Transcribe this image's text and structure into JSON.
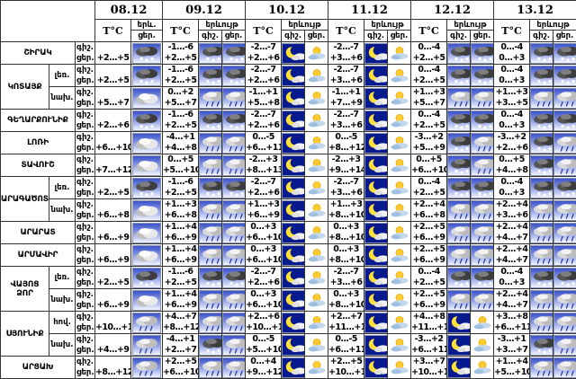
{
  "colors": {
    "icon_sky_top": "#3b52c9",
    "icon_sky_bottom": "#f2f5ff",
    "night_navy": "#071a8e",
    "sun_yellow": "#ffcc33",
    "border": "#333333"
  },
  "header": {
    "dates": [
      "08.12",
      "09.12",
      "10.12",
      "11.12",
      "12.12",
      "13.12"
    ],
    "temp": "T°C",
    "phenomenon": "երևույթ",
    "phenomenon_short": "երև.",
    "night": "գիշ.",
    "day": "ցեր."
  },
  "regions": [
    {
      "name": "ՇԻՐԱԿ",
      "rows": [
        {
          "sub": "",
          "d": [
            {
              "day_t": "+2...+5",
              "icon": "snow"
            },
            {
              "night_t": "-1...-6",
              "day_t": "+2...+5",
              "night_icon": "snow",
              "day_icon": "snow"
            },
            {
              "night_t": "-2...-7",
              "day_t": "+2...+6",
              "night_icon": "moon",
              "day_icon": "sun"
            },
            {
              "night_t": "-2...-7",
              "day_t": "+3...+6",
              "night_icon": "moon",
              "day_icon": "sun"
            },
            {
              "night_t": "0...-4",
              "day_t": "+2...+5",
              "night_icon": "snow",
              "day_icon": "snow"
            },
            {
              "night_t": "0...-4",
              "day_t": "0...+3",
              "night_icon": "snow",
              "day_icon": "snow"
            }
          ]
        }
      ]
    },
    {
      "name": "ԿՈՏԱՅՔ",
      "rows": [
        {
          "sub": "լեռ.",
          "d": [
            {
              "day_t": "+2...+5",
              "icon": "snow"
            },
            {
              "night_t": "-1...-6",
              "day_t": "+2...+5",
              "night_icon": "snow",
              "day_icon": "snow"
            },
            {
              "night_t": "-2...-7",
              "day_t": "+2...+6",
              "night_icon": "moon",
              "day_icon": "sun"
            },
            {
              "night_t": "-2...-7",
              "day_t": "+3...+6",
              "night_icon": "moon",
              "day_icon": "sun"
            },
            {
              "night_t": "0...-4",
              "day_t": "+2...+5",
              "night_icon": "snow",
              "day_icon": "snow"
            },
            {
              "night_t": "0...-4",
              "day_t": "0...+3",
              "night_icon": "snow",
              "day_icon": "snow"
            }
          ]
        },
        {
          "sub": "նախ.",
          "d": [
            {
              "day_t": "+5...+7",
              "icon": "cloud"
            },
            {
              "night_t": "0...+2",
              "day_t": "+5...+7",
              "night_icon": "rain",
              "day_icon": "rain"
            },
            {
              "night_t": "-1...+1",
              "day_t": "+5...+8",
              "night_icon": "moon",
              "day_icon": "sun"
            },
            {
              "night_t": "-1...+1",
              "day_t": "+7...+9",
              "night_icon": "moon",
              "day_icon": "sun"
            },
            {
              "night_t": "+1...+3",
              "day_t": "+5...+7",
              "night_icon": "rain",
              "day_icon": "rain"
            },
            {
              "night_t": "+1...+3",
              "day_t": "+3...+5",
              "night_icon": "rain",
              "day_icon": "rain"
            }
          ]
        }
      ]
    },
    {
      "name": "ԳԵՂԱՐՔՈՒՆԻՔ",
      "rows": [
        {
          "sub": "",
          "d": [
            {
              "day_t": "+2...+6",
              "icon": "snow"
            },
            {
              "night_t": "-1...-6",
              "day_t": "+2...+5",
              "night_icon": "snow",
              "day_icon": "snow"
            },
            {
              "night_t": "-2...-7",
              "day_t": "+2...+6",
              "night_icon": "moon",
              "day_icon": "sun"
            },
            {
              "night_t": "-2...-7",
              "day_t": "+3...+6",
              "night_icon": "moon",
              "day_icon": "sun"
            },
            {
              "night_t": "0...-4",
              "day_t": "+2...+5",
              "night_icon": "snow",
              "day_icon": "snow"
            },
            {
              "night_t": "0...-4",
              "day_t": "0...+3",
              "night_icon": "snow",
              "day_icon": "snow"
            }
          ]
        }
      ]
    },
    {
      "name": "ԼՈՌԻ",
      "rows": [
        {
          "sub": "",
          "d": [
            {
              "day_t": "+6...+10",
              "icon": "cloud"
            },
            {
              "night_t": "-4...+1",
              "day_t": "+4...+8",
              "night_icon": "rain",
              "day_icon": "rain"
            },
            {
              "night_t": "0...-5",
              "day_t": "+6...+11",
              "night_icon": "moon",
              "day_icon": "sun"
            },
            {
              "night_t": "0...-5",
              "day_t": "+8...+12",
              "night_icon": "moon",
              "day_icon": "sun"
            },
            {
              "night_t": "-3...+2",
              "day_t": "+5...+9",
              "night_icon": "snow",
              "day_icon": "rain"
            },
            {
              "night_t": "-3...+2",
              "day_t": "+2...+6",
              "night_icon": "snow",
              "day_icon": "rain"
            }
          ]
        }
      ]
    },
    {
      "name": "ՏԱՎՈՒՇ",
      "rows": [
        {
          "sub": "",
          "d": [
            {
              "day_t": "+7...+12",
              "icon": "cloud"
            },
            {
              "night_t": "0...+5",
              "day_t": "+5...+10",
              "night_icon": "rain",
              "day_icon": "rain"
            },
            {
              "night_t": "-2...+3",
              "day_t": "+8...+13",
              "night_icon": "moon",
              "day_icon": "sun"
            },
            {
              "night_t": "-2...+3",
              "day_t": "+9...+14",
              "night_icon": "moon",
              "day_icon": "sun"
            },
            {
              "night_t": "0...+5",
              "day_t": "+6...+10",
              "night_icon": "snow",
              "day_icon": "rain"
            },
            {
              "night_t": "0...+5",
              "day_t": "+4...+8",
              "night_icon": "snow",
              "day_icon": "rain"
            }
          ]
        }
      ]
    },
    {
      "name": "ԱՐԱԳԱԾՈՏՆ",
      "rows": [
        {
          "sub": "լեռ.",
          "d": [
            {
              "day_t": "+2...+5",
              "icon": "snow"
            },
            {
              "night_t": "-1...-6",
              "day_t": "+2...+5",
              "night_icon": "snow",
              "day_icon": "snow"
            },
            {
              "night_t": "-2...-7",
              "day_t": "+2...+6",
              "night_icon": "moon",
              "day_icon": "sun"
            },
            {
              "night_t": "-2...-7",
              "day_t": "+3...+6",
              "night_icon": "moon",
              "day_icon": "sun"
            },
            {
              "night_t": "0...-4",
              "day_t": "+2...+5",
              "night_icon": "snow",
              "day_icon": "snow"
            },
            {
              "night_t": "0...-4",
              "day_t": "0...+3",
              "night_icon": "snow",
              "day_icon": "snow"
            }
          ]
        },
        {
          "sub": "նախ.",
          "d": [
            {
              "day_t": "+6...+8",
              "icon": "cloud"
            },
            {
              "night_t": "+1...+3",
              "day_t": "+6...+8",
              "night_icon": "rain",
              "day_icon": "rain"
            },
            {
              "night_t": "+1...+3",
              "day_t": "+6...+9",
              "night_icon": "moon",
              "day_icon": "sun"
            },
            {
              "night_t": "+1...+3",
              "day_t": "+8...+10",
              "night_icon": "moon",
              "day_icon": "sun"
            },
            {
              "night_t": "+2...+4",
              "day_t": "+6...+8",
              "night_icon": "rain",
              "day_icon": "rain"
            },
            {
              "night_t": "+2...+4",
              "day_t": "+3...+6",
              "night_icon": "rain",
              "day_icon": "rain"
            }
          ]
        }
      ]
    },
    {
      "name": "ԱՐԱՐԱՏ",
      "rows": [
        {
          "sub": "",
          "d": [
            {
              "day_t": "+6...+9",
              "icon": "cloud"
            },
            {
              "night_t": "+1...+4",
              "day_t": "+6...+9",
              "night_icon": "rain",
              "day_icon": "rain"
            },
            {
              "night_t": "0...+3",
              "day_t": "+6...+10",
              "night_icon": "moon",
              "day_icon": "sun"
            },
            {
              "night_t": "0...+3",
              "day_t": "+8...+10",
              "night_icon": "moon",
              "day_icon": "sun"
            },
            {
              "night_t": "+2...+5",
              "day_t": "+6...+9",
              "night_icon": "rain",
              "day_icon": "rain"
            },
            {
              "night_t": "+2...+4",
              "day_t": "+4...+7",
              "night_icon": "rain",
              "day_icon": "rain"
            }
          ]
        }
      ]
    },
    {
      "name": "ԱՐՄԱՎԻՐ",
      "rows": [
        {
          "sub": "",
          "d": [
            {
              "day_t": "+6...+9",
              "icon": "cloud"
            },
            {
              "night_t": "+1...+4",
              "day_t": "+6...+9",
              "night_icon": "rain",
              "day_icon": "rain"
            },
            {
              "night_t": "0...+3",
              "day_t": "+6...+10",
              "night_icon": "moon",
              "day_icon": "sun"
            },
            {
              "night_t": "0...+3",
              "day_t": "+8...+10",
              "night_icon": "moon",
              "day_icon": "sun"
            },
            {
              "night_t": "+2...+5",
              "day_t": "+6...+9",
              "night_icon": "rain",
              "day_icon": "rain"
            },
            {
              "night_t": "+2...+4",
              "day_t": "+4...+7",
              "night_icon": "rain",
              "day_icon": "rain"
            }
          ]
        }
      ]
    },
    {
      "name": "ՎԱՅՈՑ ՁՈՐ",
      "rows": [
        {
          "sub": "լեռ.",
          "d": [
            {
              "day_t": "+2...+5",
              "icon": "snow"
            },
            {
              "night_t": "-1...-6",
              "day_t": "+2...+5",
              "night_icon": "snow",
              "day_icon": "snow"
            },
            {
              "night_t": "-2...-7",
              "day_t": "+2...+6",
              "night_icon": "moon",
              "day_icon": "sun"
            },
            {
              "night_t": "-2...-7",
              "day_t": "+3...+6",
              "night_icon": "moon",
              "day_icon": "sun"
            },
            {
              "night_t": "0...-4",
              "day_t": "+2...+5",
              "night_icon": "snow",
              "day_icon": "snow"
            },
            {
              "night_t": "0...-4",
              "day_t": "0...+3",
              "night_icon": "snow",
              "day_icon": "snow"
            }
          ]
        },
        {
          "sub": "նախ.",
          "d": [
            {
              "day_t": "+6...+9",
              "icon": "cloud"
            },
            {
              "night_t": "+1...+4",
              "day_t": "+6...+9",
              "night_icon": "rain",
              "day_icon": "rain"
            },
            {
              "night_t": "0...+3",
              "day_t": "+6...+10",
              "night_icon": "moon",
              "day_icon": "sun"
            },
            {
              "night_t": "0...+3",
              "day_t": "+8...+10",
              "night_icon": "moon",
              "day_icon": "sun"
            },
            {
              "night_t": "+2...+5",
              "day_t": "+6...+9",
              "night_icon": "rain",
              "day_icon": "rain"
            },
            {
              "night_t": "+2...+4",
              "day_t": "+4...+7",
              "night_icon": "rain",
              "day_icon": "rain"
            }
          ]
        }
      ]
    },
    {
      "name": "ՍՅՈՒՆԻՔ",
      "rows": [
        {
          "sub": "հով.",
          "d": [
            {
              "day_t": "+10...+12",
              "icon": "rain"
            },
            {
              "night_t": "+4...+7",
              "day_t": "+8...+12",
              "night_icon": "rain",
              "day_icon": "rain"
            },
            {
              "night_t": "+2...+6",
              "day_t": "+10...+13",
              "night_icon": "moon",
              "day_icon": "sun"
            },
            {
              "night_t": "+2...+7",
              "day_t": "+11...+15",
              "night_icon": "moon",
              "day_icon": "sun"
            },
            {
              "night_t": "+4...+8",
              "day_t": "+11...+15",
              "night_icon": "moon",
              "day_icon": "sun"
            },
            {
              "night_t": "+3...+8",
              "day_t": "+6...+11",
              "night_icon": "rain",
              "day_icon": "rain"
            }
          ]
        },
        {
          "sub": "նախ.",
          "d": [
            {
              "day_t": "+4...+9",
              "icon": "rain"
            },
            {
              "night_t": "-4...+1",
              "day_t": "+2...+7",
              "night_icon": "snow",
              "day_icon": "rain"
            },
            {
              "night_t": "0...-5",
              "day_t": "+5...+10",
              "night_icon": "moon",
              "day_icon": "sun"
            },
            {
              "night_t": "0...-5",
              "day_t": "+6...+11",
              "night_icon": "moon",
              "day_icon": "sun"
            },
            {
              "night_t": "-3...+2",
              "day_t": "+6...+11",
              "night_icon": "moon",
              "day_icon": "sun"
            },
            {
              "night_t": "-3...+1",
              "day_t": "+3...+7",
              "night_icon": "snow",
              "day_icon": "rain"
            }
          ]
        }
      ]
    },
    {
      "name": "ԱՐՑԱԽ",
      "rows": [
        {
          "sub": "",
          "d": [
            {
              "day_t": "+8...+12",
              "icon": "rain"
            },
            {
              "night_t": "+2...+5",
              "day_t": "+6...+10",
              "night_icon": "rain",
              "day_icon": "rain"
            },
            {
              "night_t": "0...+4",
              "day_t": "+9...+12",
              "night_icon": "moon",
              "day_icon": "sun"
            },
            {
              "night_t": "+2...+5",
              "day_t": "+10...+13",
              "night_icon": "moon",
              "day_icon": "sun"
            },
            {
              "night_t": "+3...+7",
              "day_t": "+10...+13",
              "night_icon": "moon",
              "day_icon": "sun"
            },
            {
              "night_t": "+1...+4",
              "day_t": "+5...+10",
              "night_icon": "rain",
              "day_icon": "rain"
            }
          ]
        }
      ]
    }
  ]
}
